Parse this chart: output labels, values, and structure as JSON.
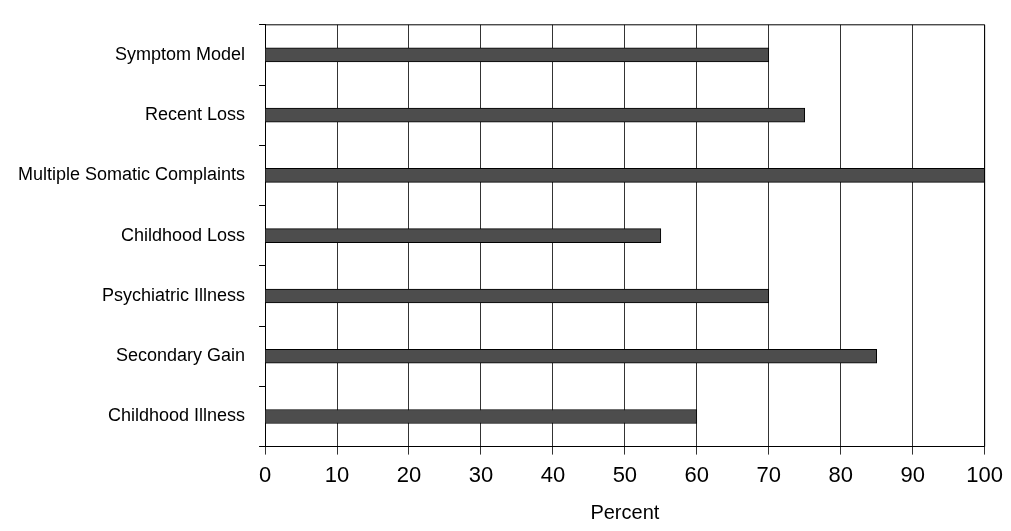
{
  "chart_data": {
    "type": "bar",
    "orientation": "horizontal",
    "xlabel": "Percent",
    "categories": [
      "Symptom Model",
      "Recent Loss",
      "Multiple Somatic Complaints",
      "Childhood Loss",
      "Psychiatric Illness",
      "Secondary Gain",
      "Childhood Illness"
    ],
    "values": [
      70,
      75,
      100,
      55,
      70,
      85,
      60
    ],
    "color": "#4d4d4d",
    "xlim": [
      0,
      100
    ],
    "xticks": [
      0,
      10,
      20,
      30,
      40,
      50,
      60,
      70,
      80,
      90,
      100
    ],
    "grid": "x",
    "legend": false
  }
}
